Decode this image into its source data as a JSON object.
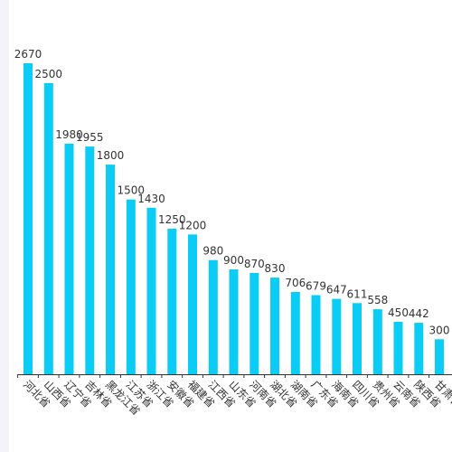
{
  "chart_data": {
    "type": "bar",
    "categories": [
      "河北省",
      "山西省",
      "辽宁省",
      "吉林省",
      "黑龙江省",
      "江苏省",
      "浙江省",
      "安徽省",
      "福建省",
      "江西省",
      "山东省",
      "河南省",
      "湖北省",
      "湖南省",
      "广东省",
      "海南省",
      "四川省",
      "贵州省",
      "云南省",
      "陕西省",
      "甘肃省"
    ],
    "values": [
      2670,
      2500,
      1980,
      1955,
      1800,
      1500,
      1430,
      1250,
      1200,
      980,
      900,
      870,
      830,
      706,
      679,
      647,
      611,
      558,
      450,
      442,
      300
    ],
    "title": "",
    "xlabel": "",
    "ylabel": "",
    "ylim": [
      0,
      2700
    ],
    "grid": false,
    "legend": "none",
    "bar_color": "#0bccf5",
    "axis_color": "#333333"
  }
}
